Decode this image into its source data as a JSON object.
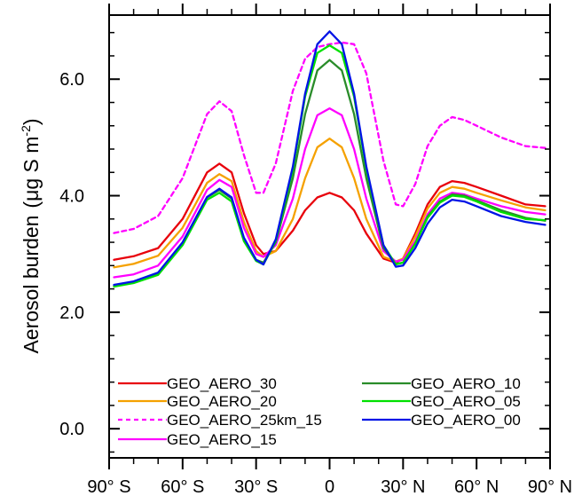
{
  "chart_data": {
    "type": "line",
    "xlabel": "",
    "ylabel_main": "Aerosol burden",
    "ylabel_unit_prefix": "(μg S m",
    "ylabel_unit_sup": "-2",
    "ylabel_unit_suffix": ")",
    "xlim": [
      -90,
      90
    ],
    "ylim": [
      -0.5,
      7.1
    ],
    "x_ticks": [
      {
        "value": -90,
        "label": "90° S"
      },
      {
        "value": -60,
        "label": "60° S"
      },
      {
        "value": -30,
        "label": "30° S"
      },
      {
        "value": 0,
        "label": "0"
      },
      {
        "value": 30,
        "label": "30° N"
      },
      {
        "value": 60,
        "label": "60° N"
      },
      {
        "value": 90,
        "label": "90° N"
      }
    ],
    "y_ticks": [
      {
        "value": 0,
        "label": "0.0"
      },
      {
        "value": 2,
        "label": "2.0"
      },
      {
        "value": 4,
        "label": "4.0"
      },
      {
        "value": 6,
        "label": "6.0"
      }
    ],
    "x": [
      -88,
      -80,
      -70,
      -60,
      -50,
      -45,
      -40,
      -35,
      -30,
      -27,
      -22,
      -15,
      -10,
      -5,
      0,
      5,
      10,
      15,
      22,
      27,
      30,
      35,
      40,
      45,
      50,
      55,
      60,
      70,
      80,
      88
    ],
    "series": [
      {
        "name": "GEO_AERO_30",
        "color": "#e8000b",
        "dash": "",
        "values": [
          2.9,
          2.96,
          3.1,
          3.6,
          4.4,
          4.55,
          4.4,
          3.7,
          3.15,
          3.0,
          3.05,
          3.4,
          3.75,
          3.97,
          4.05,
          3.97,
          3.75,
          3.35,
          2.92,
          2.85,
          2.92,
          3.35,
          3.85,
          4.15,
          4.25,
          4.22,
          4.15,
          4.0,
          3.85,
          3.82
        ]
      },
      {
        "name": "GEO_AERO_20",
        "color": "#f5a100",
        "dash": "",
        "values": [
          2.77,
          2.83,
          2.97,
          3.45,
          4.22,
          4.37,
          4.25,
          3.55,
          3.05,
          2.95,
          3.05,
          3.6,
          4.3,
          4.83,
          4.98,
          4.83,
          4.3,
          3.6,
          2.95,
          2.87,
          2.92,
          3.3,
          3.78,
          4.05,
          4.15,
          4.12,
          4.05,
          3.92,
          3.8,
          3.75
        ]
      },
      {
        "name": "GEO_AERO_25km_15",
        "color": "#ff00ff",
        "dash": "5,4",
        "values": [
          3.36,
          3.43,
          3.65,
          4.3,
          5.4,
          5.62,
          5.45,
          4.7,
          4.05,
          4.05,
          4.55,
          5.8,
          6.35,
          6.55,
          6.6,
          6.63,
          6.6,
          6.1,
          4.6,
          3.85,
          3.82,
          4.2,
          4.85,
          5.2,
          5.35,
          5.3,
          5.2,
          5.0,
          4.85,
          4.82
        ]
      },
      {
        "name": "GEO_AERO_15",
        "color": "#ff00ff",
        "dash": "",
        "values": [
          2.6,
          2.65,
          2.8,
          3.3,
          4.1,
          4.27,
          4.15,
          3.45,
          3.0,
          2.95,
          3.15,
          3.95,
          4.8,
          5.38,
          5.5,
          5.38,
          4.8,
          3.95,
          3.05,
          2.87,
          2.9,
          3.22,
          3.68,
          3.95,
          4.05,
          4.02,
          3.95,
          3.82,
          3.72,
          3.68
        ]
      },
      {
        "name": "GEO_AERO_10",
        "color": "#2a8c2a",
        "dash": "",
        "values": [
          2.46,
          2.52,
          2.67,
          3.18,
          3.97,
          4.1,
          3.95,
          3.25,
          2.9,
          2.85,
          3.2,
          4.3,
          5.4,
          6.15,
          6.33,
          6.15,
          5.4,
          4.3,
          3.1,
          2.83,
          2.85,
          3.18,
          3.64,
          3.9,
          4.02,
          4.0,
          3.92,
          3.75,
          3.62,
          3.57
        ]
      },
      {
        "name": "GEO_AERO_05",
        "color": "#00e000",
        "dash": "",
        "values": [
          2.44,
          2.5,
          2.64,
          3.15,
          3.93,
          4.05,
          3.9,
          3.22,
          2.88,
          2.82,
          3.22,
          4.45,
          5.7,
          6.45,
          6.58,
          6.45,
          5.7,
          4.45,
          3.15,
          2.82,
          2.85,
          3.17,
          3.62,
          3.88,
          4.0,
          3.98,
          3.9,
          3.72,
          3.6,
          3.58
        ]
      },
      {
        "name": "GEO_AERO_00",
        "color": "#0014e6",
        "dash": "",
        "values": [
          2.47,
          2.53,
          2.68,
          3.2,
          3.98,
          4.12,
          3.97,
          3.28,
          2.9,
          2.82,
          3.25,
          4.5,
          5.75,
          6.6,
          6.82,
          6.6,
          5.75,
          4.5,
          3.15,
          2.78,
          2.8,
          3.1,
          3.52,
          3.8,
          3.93,
          3.9,
          3.82,
          3.65,
          3.55,
          3.5
        ]
      }
    ],
    "legend_placement": "bottom"
  }
}
